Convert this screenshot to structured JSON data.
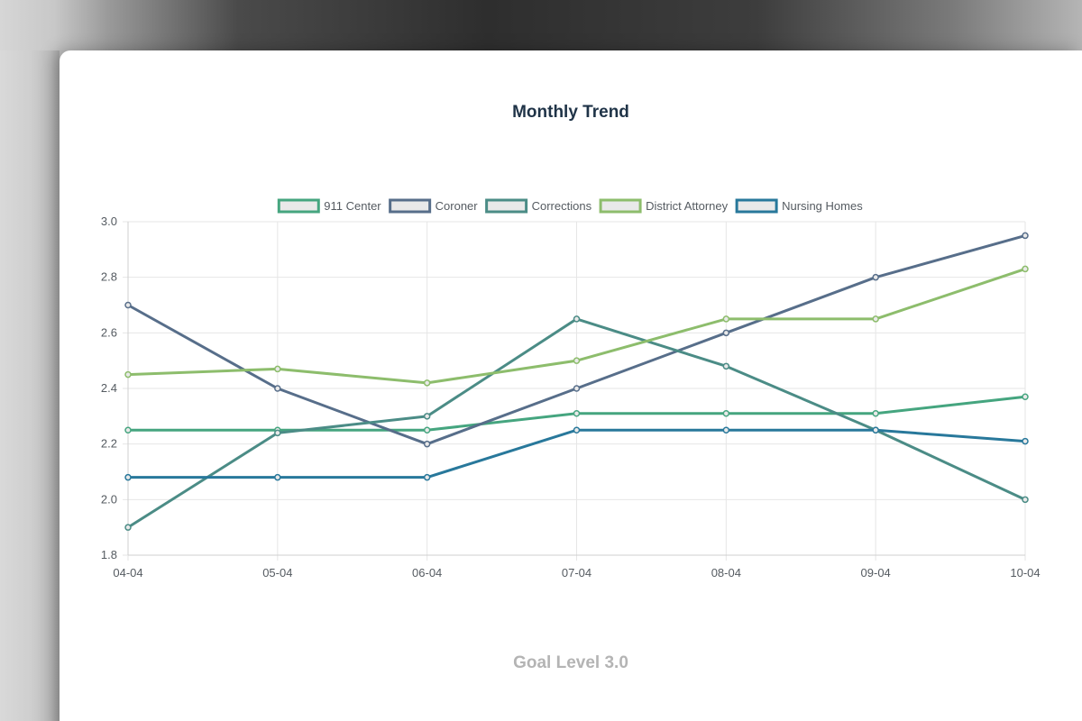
{
  "chart_data": {
    "type": "line",
    "title": "Monthly Trend",
    "footer": "Goal Level 3.0",
    "categories": [
      "04-04",
      "05-04",
      "06-04",
      "07-04",
      "08-04",
      "09-04",
      "10-04"
    ],
    "ylim": [
      1.8,
      3.0
    ],
    "yticks": [
      "3.0",
      "2.8",
      "2.6",
      "2.4",
      "2.2",
      "2.0",
      "1.8"
    ],
    "ytick_values": [
      3.0,
      2.8,
      2.6,
      2.4,
      2.2,
      2.0,
      1.8
    ],
    "grid": true,
    "legend_position": "top",
    "series": [
      {
        "name": "911 Center",
        "color": "#45a57f",
        "values": [
          2.25,
          2.25,
          2.25,
          2.31,
          2.31,
          2.31,
          2.37
        ]
      },
      {
        "name": "Coroner",
        "color": "#576e8a",
        "values": [
          2.7,
          2.4,
          2.2,
          2.4,
          2.6,
          2.8,
          2.95
        ]
      },
      {
        "name": "Corrections",
        "color": "#4b8c86",
        "values": [
          1.9,
          2.24,
          2.3,
          2.65,
          2.48,
          2.25,
          2.0
        ]
      },
      {
        "name": "District Attorney",
        "color": "#8dbd6c",
        "values": [
          2.45,
          2.47,
          2.42,
          2.5,
          2.65,
          2.65,
          2.83
        ]
      },
      {
        "name": "Nursing Homes",
        "color": "#28789b",
        "values": [
          2.08,
          2.08,
          2.08,
          2.25,
          2.25,
          2.25,
          2.21
        ]
      }
    ]
  }
}
